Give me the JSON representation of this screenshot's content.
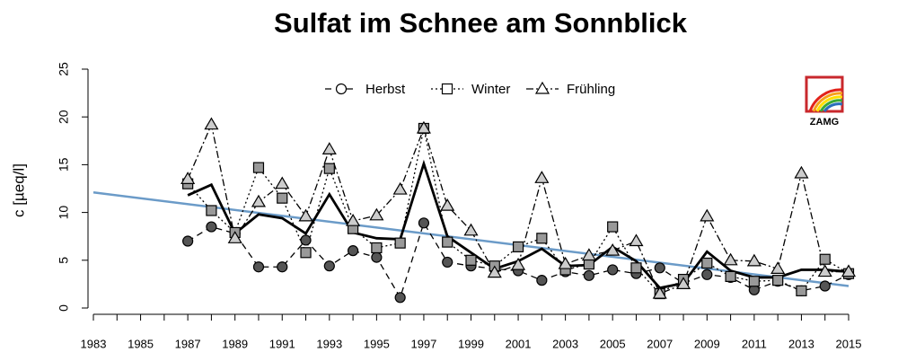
{
  "chart_data": {
    "type": "line",
    "title": "Sulfat im Schnee am Sonnblick",
    "y_label": "c [µeq/l]",
    "logo": "ZAMG",
    "x": [
      1987,
      1988,
      1989,
      1990,
      1991,
      1992,
      1993,
      1994,
      1995,
      1996,
      1997,
      1998,
      1999,
      2000,
      2001,
      2002,
      2003,
      2004,
      2005,
      2006,
      2007,
      2008,
      2009,
      2010,
      2011,
      2012,
      2013,
      2014,
      2015
    ],
    "series": [
      {
        "name": "Herbst",
        "color": "#555555",
        "marker": "circle",
        "dash": "7,5",
        "values": [
          7.0,
          8.5,
          7.8,
          4.3,
          4.3,
          7.1,
          4.4,
          6.0,
          5.3,
          1.1,
          8.9,
          4.8,
          4.4,
          4.1,
          3.9,
          2.9,
          3.8,
          3.4,
          4.0,
          3.6,
          4.2,
          2.6,
          3.5,
          3.2,
          1.9,
          2.8,
          1.8,
          2.3,
          3.5
        ]
      },
      {
        "name": "Winter",
        "color": "#999999",
        "marker": "square",
        "dash": "2,3",
        "values": [
          13.0,
          10.2,
          7.9,
          14.7,
          11.5,
          5.8,
          14.6,
          8.3,
          6.3,
          6.8,
          18.8,
          6.9,
          5.0,
          4.4,
          6.4,
          7.3,
          4.0,
          4.6,
          8.5,
          4.2,
          1.5,
          3.0,
          4.7,
          3.3,
          2.8,
          2.9,
          1.8,
          5.1,
          3.6
        ]
      },
      {
        "name": "Frühling",
        "color": "#cccccc",
        "marker": "triangle",
        "dash": "8,3,2,3",
        "values": [
          13.5,
          19.2,
          7.3,
          11.1,
          13.0,
          9.6,
          16.6,
          9.1,
          9.7,
          12.4,
          18.8,
          10.7,
          8.1,
          3.7,
          4.5,
          13.6,
          4.6,
          5.5,
          6.0,
          7.0,
          1.5,
          2.5,
          9.6,
          5.0,
          4.9,
          4.1,
          14.1,
          3.8,
          3.8
        ]
      },
      {
        "color": "#000000",
        "values": [
          11.8,
          12.9,
          7.8,
          9.8,
          9.4,
          7.8,
          11.9,
          7.9,
          7.3,
          7.2,
          15.1,
          7.5,
          5.8,
          4.1,
          4.9,
          6.2,
          4.4,
          4.5,
          6.4,
          4.9,
          2.1,
          2.6,
          5.9,
          3.9,
          3.2,
          3.2,
          4.0,
          4.0,
          3.8
        ]
      }
    ],
    "trend": {
      "x": [
        1983,
        2015
      ],
      "values": [
        12.1,
        2.3
      ],
      "color": "#6b9bc8"
    },
    "xlim": [
      1983,
      2015
    ],
    "xticks": [
      1983,
      1985,
      1987,
      1989,
      1991,
      1993,
      1995,
      1997,
      1999,
      2001,
      2003,
      2005,
      2007,
      2009,
      2011,
      2013,
      2015
    ],
    "xminor": [
      1984,
      1986,
      1988,
      1990,
      1992,
      1994,
      1996,
      1998,
      2000,
      2002,
      2004,
      2006,
      2008,
      2010,
      2012,
      2014
    ],
    "ylim": [
      0,
      25
    ],
    "yticks": [
      0,
      5,
      10,
      15,
      20,
      25
    ],
    "legend": "top"
  }
}
